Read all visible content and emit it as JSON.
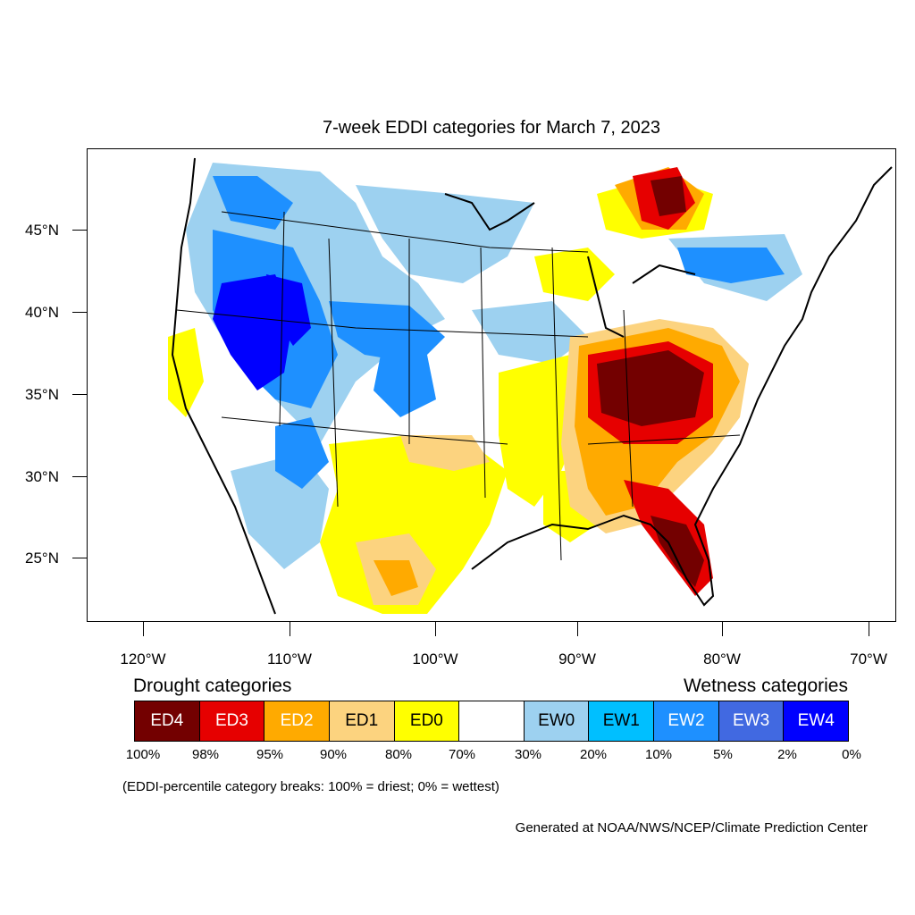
{
  "title": "7-week EDDI categories for March 7, 2023",
  "lat_labels": [
    "45°N",
    "40°N",
    "35°N",
    "30°N",
    "25°N"
  ],
  "lon_labels": [
    "120°W",
    "110°W",
    "100°W",
    "90°W",
    "80°W",
    "70°W"
  ],
  "legend": {
    "drought_heading": "Drought categories",
    "wetness_heading": "Wetness categories",
    "categories": [
      {
        "label": "ED4",
        "color": "#730000",
        "text_color": "#ffffff"
      },
      {
        "label": "ED3",
        "color": "#e60000",
        "text_color": "#ffffff"
      },
      {
        "label": "ED2",
        "color": "#ffaa00",
        "text_color": "#ffffff"
      },
      {
        "label": "ED1",
        "color": "#fcd37f",
        "text_color": "#000000"
      },
      {
        "label": "ED0",
        "color": "#ffff00",
        "text_color": "#000000"
      },
      {
        "label": "",
        "color": "#ffffff",
        "text_color": "#000000"
      },
      {
        "label": "EW0",
        "color": "#9dd1f0",
        "text_color": "#000000"
      },
      {
        "label": "EW1",
        "color": "#00bfff",
        "text_color": "#000000"
      },
      {
        "label": "EW2",
        "color": "#1e90ff",
        "text_color": "#ffffff"
      },
      {
        "label": "EW3",
        "color": "#4169e1",
        "text_color": "#ffffff"
      },
      {
        "label": "EW4",
        "color": "#0000ff",
        "text_color": "#ffffff"
      }
    ],
    "breaks": [
      "100%",
      "98%",
      "95%",
      "90%",
      "80%",
      "70%",
      "30%",
      "20%",
      "10%",
      "5%",
      "2%",
      "0%"
    ]
  },
  "note": "(EDDI-percentile category breaks: 100% = driest; 0% = wettest)",
  "credit": "Generated at NOAA/NWS/NCEP/Climate Prediction Center"
}
